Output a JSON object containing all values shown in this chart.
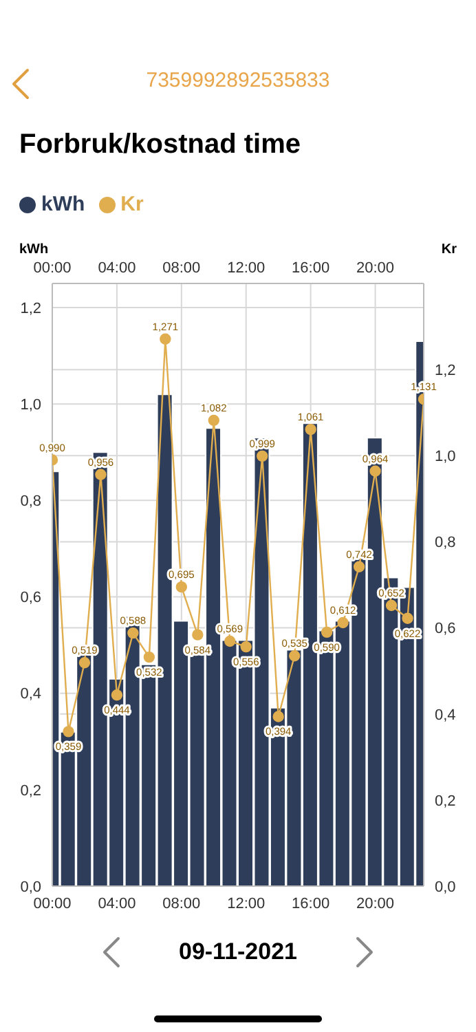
{
  "chart_data": {
    "type": "bar",
    "title": "Forbruk/kostnad time",
    "annotations": [
      "7359992892535833",
      "09-11-2021"
    ],
    "ylabel": "kWh",
    "y2label": "Kr",
    "x": [
      0,
      1,
      2,
      3,
      4,
      5,
      6,
      7,
      8,
      9,
      10,
      11,
      12,
      13,
      14,
      15,
      16,
      17,
      18,
      19,
      20,
      21,
      22,
      23
    ],
    "series": [
      {
        "name": "kWh",
        "color": "#2e3d59",
        "values": [
          0.86,
          0.32,
          0.48,
          0.9,
          0.43,
          0.56,
          0.46,
          1.02,
          0.55,
          0.48,
          0.95,
          0.51,
          0.51,
          0.93,
          0.37,
          0.49,
          0.96,
          0.53,
          0.55,
          0.68,
          0.93,
          0.64,
          0.62,
          1.13
        ]
      },
      {
        "name": "Kr",
        "type": "line",
        "axis": "y2",
        "color": "#e0ad4f",
        "marker": "circle",
        "values": [
          0.99,
          0.359,
          0.519,
          0.956,
          0.444,
          0.588,
          0.532,
          1.271,
          0.695,
          0.584,
          1.082,
          0.569,
          0.556,
          0.999,
          0.394,
          0.535,
          1.061,
          0.59,
          0.612,
          0.742,
          0.964,
          0.652,
          0.622,
          1.131
        ],
        "value_labels": [
          "0,990",
          "0,359",
          "0,519",
          "0,956",
          "0,444",
          "0,588",
          "0,532",
          "1,271",
          "0,695",
          "0,584",
          "1,082",
          "0,569",
          "0,556",
          "0,999",
          "0,394",
          "0,535",
          "1,061",
          "0,590",
          "0,612",
          "0,742",
          "0,964",
          "0,652",
          "0,622",
          "1,131"
        ]
      }
    ],
    "xlim": [
      0,
      23
    ],
    "xticks": [
      {
        "value": 0,
        "label": "00:00"
      },
      {
        "value": 4,
        "label": "04:00"
      },
      {
        "value": 8,
        "label": "08:00"
      },
      {
        "value": 12,
        "label": "12:00"
      },
      {
        "value": 16,
        "label": "16:00"
      },
      {
        "value": 20,
        "label": "20:00"
      }
    ],
    "x2lim": [
      0,
      23
    ],
    "x2ticks": [
      {
        "value": 0,
        "label": "00:00"
      },
      {
        "value": 4,
        "label": "04:00"
      },
      {
        "value": 8,
        "label": "08:00"
      },
      {
        "value": 12,
        "label": "12:00"
      },
      {
        "value": 16,
        "label": "16:00"
      },
      {
        "value": 20,
        "label": "20:00"
      }
    ],
    "ylim": [
      0,
      1.25
    ],
    "yticks": [
      {
        "value": 0,
        "label": "0,0"
      },
      {
        "value": 0.2,
        "label": "0,2"
      },
      {
        "value": 0.4,
        "label": "0,4"
      },
      {
        "value": 0.6,
        "label": "0,6"
      },
      {
        "value": 0.8,
        "label": "0,8"
      },
      {
        "value": 1,
        "label": "1,0"
      },
      {
        "value": 1.2,
        "label": "1,2"
      }
    ],
    "y2lim": [
      0,
      1.4
    ],
    "y2ticks": [
      {
        "value": 0,
        "label": "0,0"
      },
      {
        "value": 0.2,
        "label": "0,2"
      },
      {
        "value": 0.4,
        "label": "0,4"
      },
      {
        "value": 0.6,
        "label": "0,6"
      },
      {
        "value": 0.8,
        "label": "0,8"
      },
      {
        "value": 1,
        "label": "1,0"
      },
      {
        "value": 1.2,
        "label": "1,2"
      }
    ],
    "grid": true,
    "legend": "top left"
  }
}
